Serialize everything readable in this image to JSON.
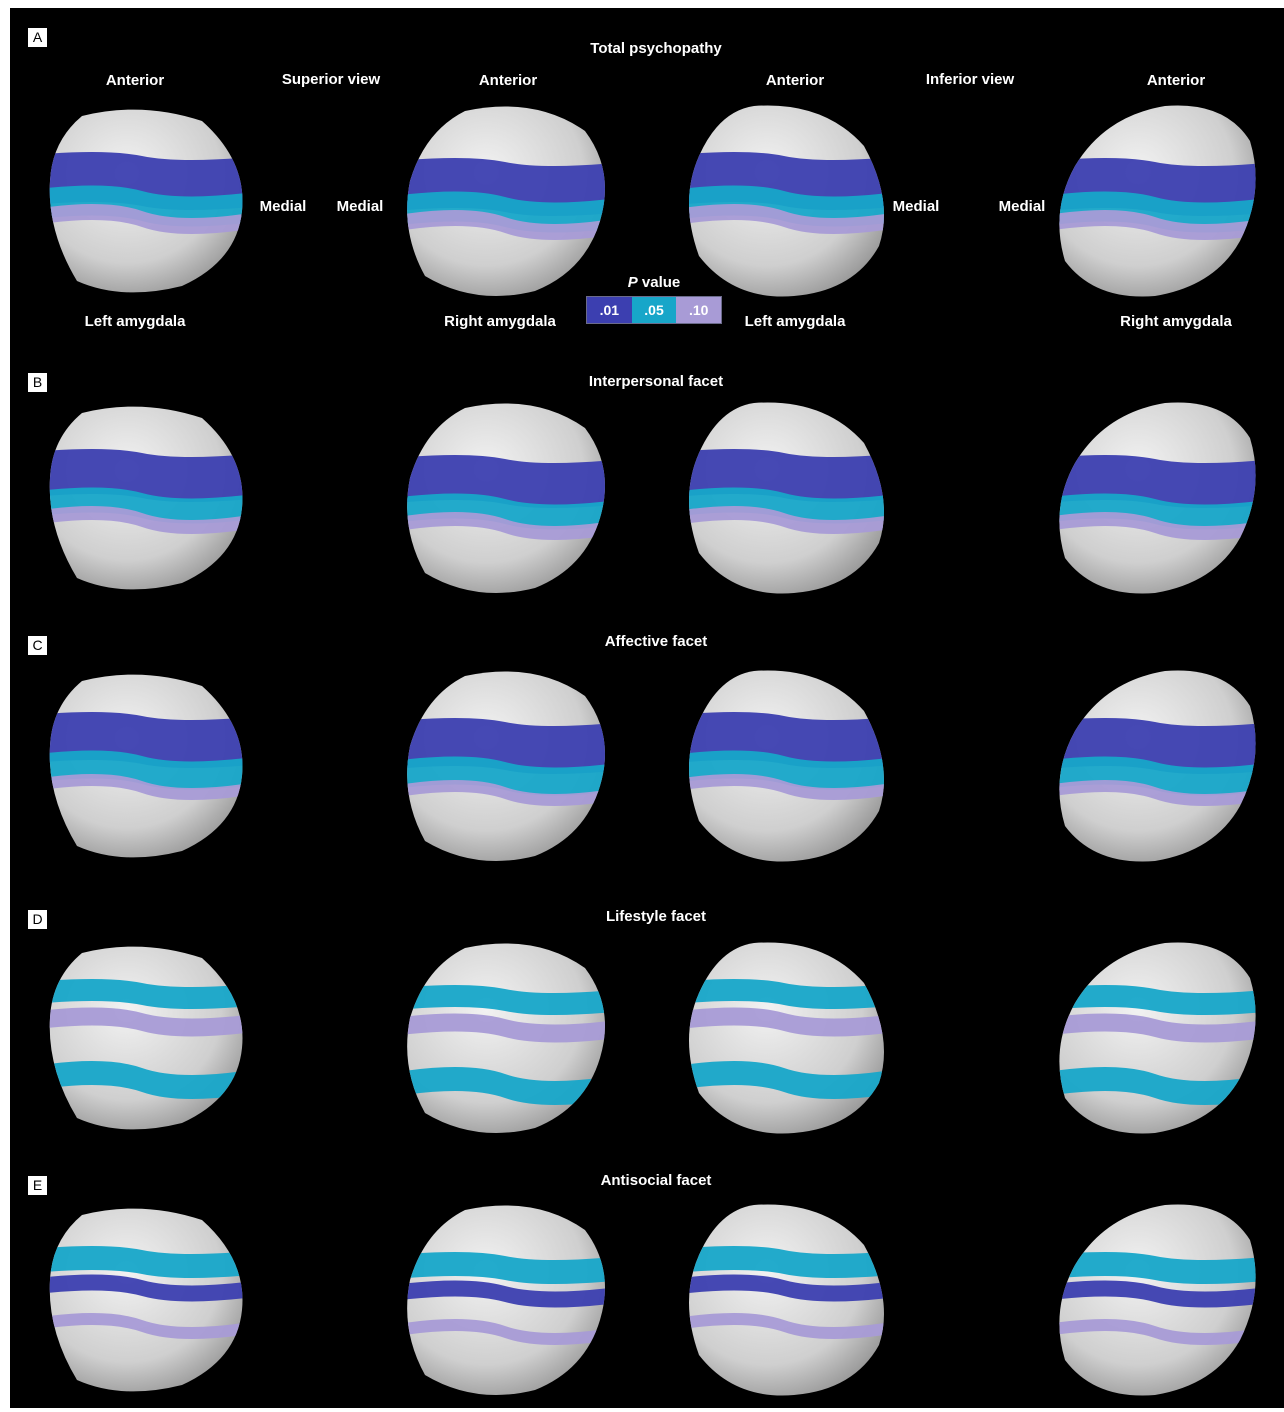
{
  "colors": {
    "background": "#000000",
    "surface": "#d8d8d8",
    "p01": "#3c3fb0",
    "p05": "#17a6c9",
    "p10": "#a89bd6"
  },
  "header": {
    "title": "Total psychopathy",
    "superior_view": "Superior view",
    "inferior_view": "Inferior view",
    "anterior": "Anterior",
    "medial": "Medial",
    "left_amygdala": "Left amygdala",
    "right_amygdala": "Right amygdala"
  },
  "legend": {
    "title_p": "P",
    "title_rest": " value",
    "items": [
      {
        "label": ".01",
        "color": "#3c3fb0"
      },
      {
        "label": ".05",
        "color": "#17a6c9"
      },
      {
        "label": ".10",
        "color": "#a89bd6"
      }
    ]
  },
  "panels": [
    {
      "letter": "A",
      "title": "Total psychopathy"
    },
    {
      "letter": "B",
      "title": "Interpersonal facet"
    },
    {
      "letter": "C",
      "title": "Affective facet"
    },
    {
      "letter": "D",
      "title": "Lifestyle facet"
    },
    {
      "letter": "E",
      "title": "Antisocial facet"
    }
  ]
}
